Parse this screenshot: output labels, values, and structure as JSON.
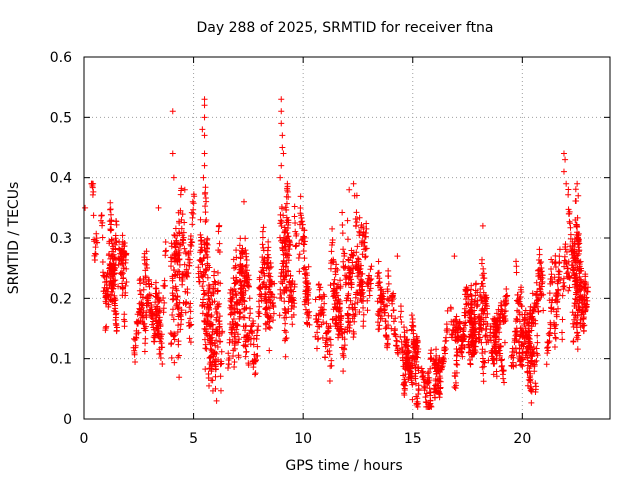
{
  "chart_data": {
    "type": "scatter",
    "title": "Day 288 of 2025, SRMTID for receiver ftna",
    "xlabel": "GPS time / hours",
    "ylabel": "SRMTID / TECUs",
    "xlim": [
      0,
      24
    ],
    "ylim": [
      0,
      0.6
    ],
    "xticks": [
      0,
      5,
      10,
      15,
      20
    ],
    "xtick_labels": [
      "0",
      "5",
      "10",
      "15",
      "20"
    ],
    "yticks": [
      0,
      0.1,
      0.2,
      0.3,
      0.4,
      0.5,
      0.6
    ],
    "ytick_labels": [
      "0",
      "0.1",
      "0.2",
      "0.3",
      "0.4",
      "0.5",
      "0.6"
    ],
    "grid": true,
    "marker": "+",
    "marker_color": "#ff0000",
    "x_data_extent": [
      0,
      23
    ],
    "profile": [
      [
        0.0,
        0.27,
        0.06
      ],
      [
        0.5,
        0.27,
        0.05
      ],
      [
        1.0,
        0.27,
        0.05
      ],
      [
        1.5,
        0.25,
        0.05
      ],
      [
        2.0,
        0.2,
        0.05
      ],
      [
        2.5,
        0.17,
        0.04
      ],
      [
        3.0,
        0.18,
        0.05
      ],
      [
        3.5,
        0.22,
        0.06
      ],
      [
        4.0,
        0.24,
        0.07
      ],
      [
        4.5,
        0.25,
        0.07
      ],
      [
        5.0,
        0.24,
        0.07
      ],
      [
        5.5,
        0.24,
        0.08
      ],
      [
        6.0,
        0.2,
        0.07
      ],
      [
        6.5,
        0.19,
        0.06
      ],
      [
        7.0,
        0.21,
        0.06
      ],
      [
        7.5,
        0.2,
        0.06
      ],
      [
        8.0,
        0.2,
        0.06
      ],
      [
        8.5,
        0.2,
        0.07
      ],
      [
        9.0,
        0.24,
        0.09
      ],
      [
        9.5,
        0.2,
        0.06
      ],
      [
        10.0,
        0.2,
        0.06
      ],
      [
        10.5,
        0.17,
        0.05
      ],
      [
        11.0,
        0.18,
        0.06
      ],
      [
        11.5,
        0.2,
        0.06
      ],
      [
        12.0,
        0.22,
        0.06
      ],
      [
        12.5,
        0.24,
        0.06
      ],
      [
        13.0,
        0.22,
        0.06
      ],
      [
        13.5,
        0.2,
        0.05
      ],
      [
        14.0,
        0.16,
        0.05
      ],
      [
        14.5,
        0.11,
        0.04
      ],
      [
        15.0,
        0.1,
        0.04
      ],
      [
        15.5,
        0.07,
        0.03
      ],
      [
        16.0,
        0.06,
        0.03
      ],
      [
        16.5,
        0.08,
        0.04
      ],
      [
        17.0,
        0.12,
        0.04
      ],
      [
        17.5,
        0.14,
        0.04
      ],
      [
        18.0,
        0.15,
        0.04
      ],
      [
        18.5,
        0.16,
        0.04
      ],
      [
        19.0,
        0.15,
        0.04
      ],
      [
        19.5,
        0.13,
        0.04
      ],
      [
        20.0,
        0.15,
        0.04
      ],
      [
        20.5,
        0.18,
        0.05
      ],
      [
        21.0,
        0.21,
        0.05
      ],
      [
        21.5,
        0.24,
        0.05
      ],
      [
        22.0,
        0.27,
        0.06
      ],
      [
        22.5,
        0.25,
        0.06
      ],
      [
        23.0,
        0.19,
        0.03
      ]
    ],
    "peaks": [
      [
        4.05,
        0.51
      ],
      [
        4.05,
        0.44
      ],
      [
        4.1,
        0.4
      ],
      [
        4.6,
        0.38
      ],
      [
        5.4,
        0.48
      ],
      [
        5.5,
        0.53
      ],
      [
        5.5,
        0.52
      ],
      [
        5.5,
        0.5
      ],
      [
        5.5,
        0.47
      ],
      [
        5.5,
        0.44
      ],
      [
        5.5,
        0.42
      ],
      [
        5.45,
        0.4
      ],
      [
        9.0,
        0.53
      ],
      [
        9.0,
        0.51
      ],
      [
        9.0,
        0.49
      ],
      [
        9.05,
        0.47
      ],
      [
        9.05,
        0.45
      ],
      [
        9.1,
        0.44
      ],
      [
        9.0,
        0.42
      ],
      [
        8.95,
        0.4
      ],
      [
        12.3,
        0.39
      ],
      [
        12.35,
        0.37
      ],
      [
        21.9,
        0.44
      ],
      [
        21.95,
        0.43
      ],
      [
        21.9,
        0.41
      ],
      [
        22.0,
        0.39
      ],
      [
        22.5,
        0.39
      ],
      [
        22.55,
        0.37
      ],
      [
        18.2,
        0.32
      ],
      [
        16.9,
        0.27
      ],
      [
        6.0,
        0.07
      ],
      [
        6.0,
        0.05
      ],
      [
        6.05,
        0.03
      ],
      [
        15.8,
        0.03
      ],
      [
        15.85,
        0.02
      ],
      [
        7.3,
        0.36
      ],
      [
        3.4,
        0.35
      ],
      [
        0.05,
        0.35
      ],
      [
        12.1,
        0.38
      ],
      [
        14.3,
        0.27
      ]
    ],
    "point_count": 3300
  }
}
